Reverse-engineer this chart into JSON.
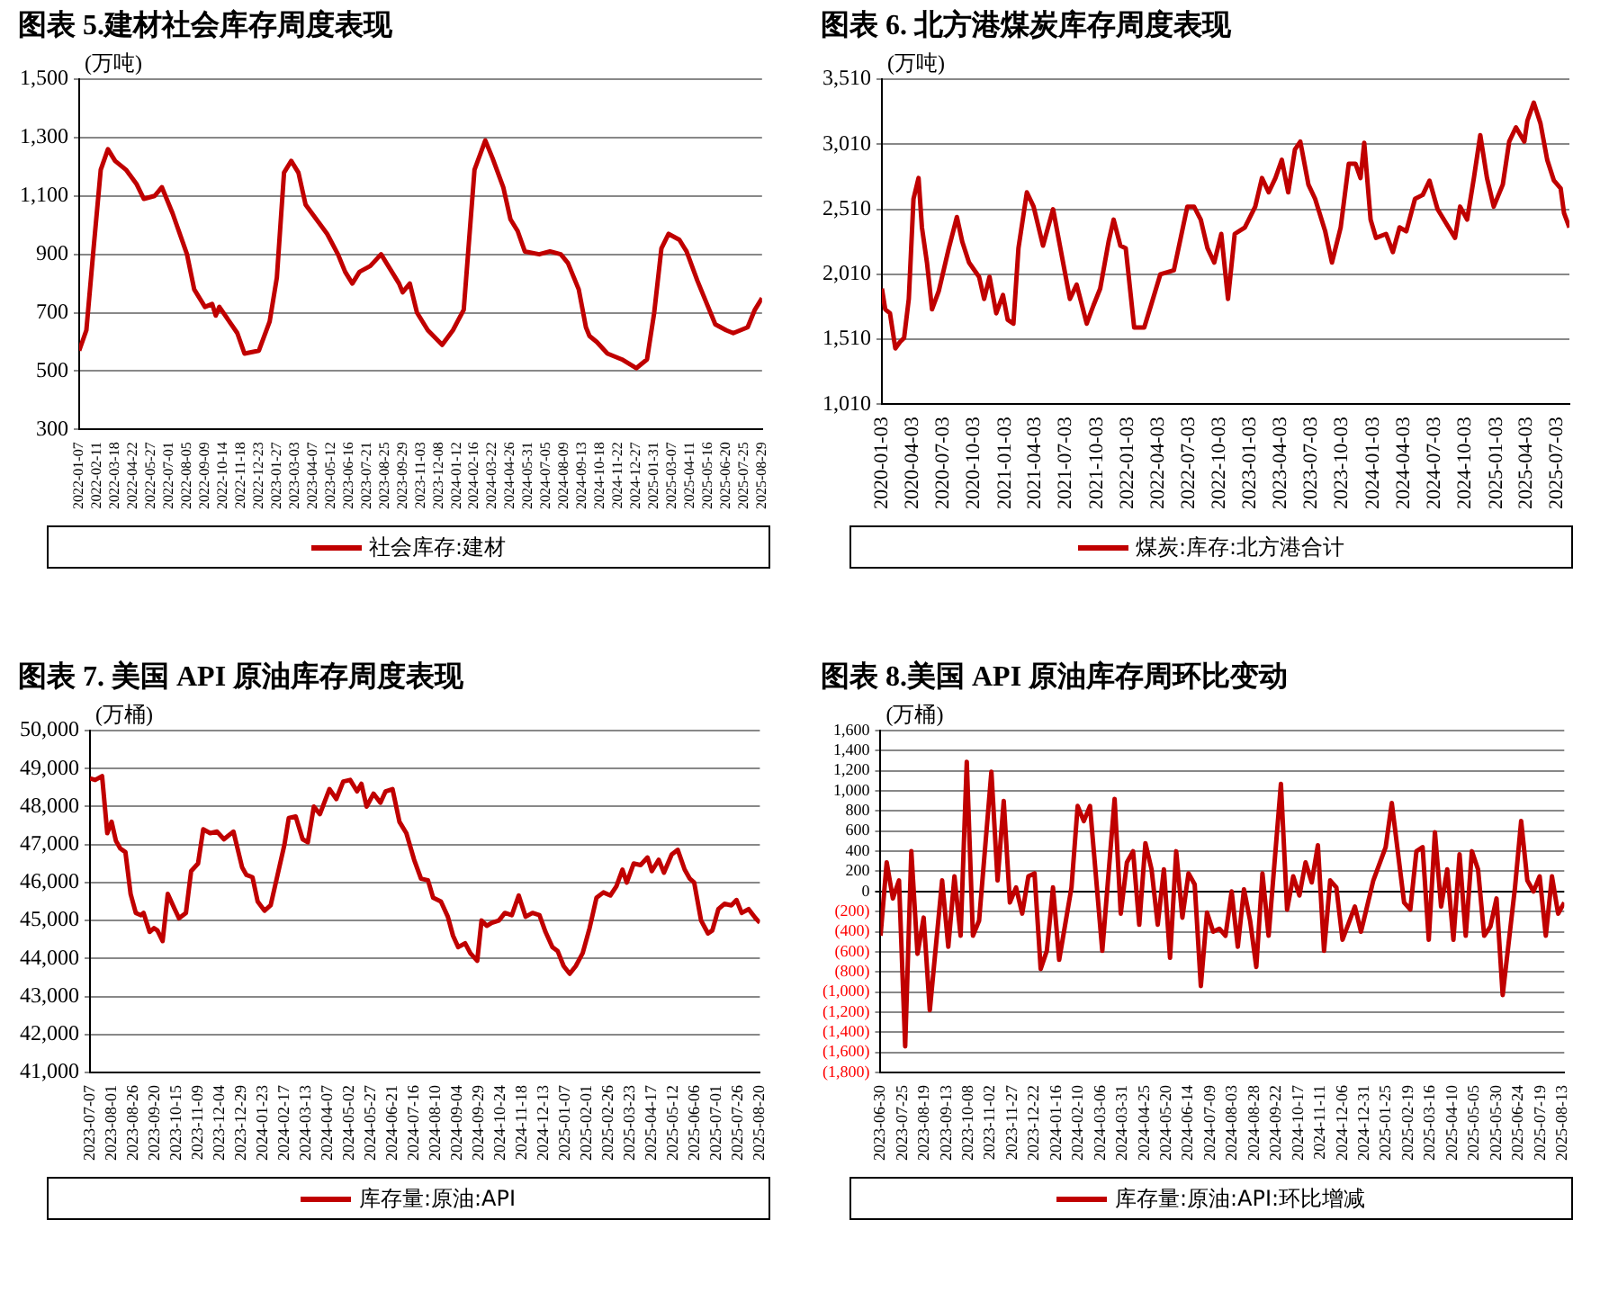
{
  "chart_data": [
    {
      "type": "line",
      "title": "图表 5.建材社会库存周度表现",
      "ylabel": "(万吨)",
      "legend": "bottom",
      "grid": "y",
      "ylim": [
        300,
        1500
      ],
      "yticks": [
        300,
        500,
        700,
        900,
        {
          "value": 1100,
          "label": "1,100"
        },
        {
          "value": 1300,
          "label": "1,300"
        },
        {
          "value": 1500,
          "label": "1,500"
        }
      ],
      "xlim": [
        "2022-01-07",
        "2025-08-29"
      ],
      "xticks": [
        "2022-01-07",
        "2022-02-11",
        "2022-03-18",
        "2022-04-22",
        "2022-05-27",
        "2022-07-01",
        "2022-08-05",
        "2022-09-09",
        "2022-10-14",
        "2022-11-18",
        "2022-12-23",
        "2023-01-27",
        "2023-03-03",
        "2023-04-07",
        "2023-05-12",
        "2023-06-16",
        "2023-07-21",
        "2023-08-25",
        "2023-09-29",
        "2023-11-03",
        "2023-12-08",
        "2024-01-12",
        "2024-02-16",
        "2024-03-22",
        "2024-04-26",
        "2024-05-31",
        "2024-07-05",
        "2024-08-09",
        "2024-09-13",
        "2024-10-18",
        "2024-11-22",
        "2024-12-27",
        "2025-01-31",
        "2025-03-07",
        "2025-04-11",
        "2025-05-16",
        "2025-06-20",
        "2025-07-25",
        "2025-08-29"
      ],
      "series": [
        {
          "name": "社会库存:建材",
          "color": "#c00000",
          "x": [
            "2022-01-07",
            "2022-01-21",
            "2022-02-04",
            "2022-02-18",
            "2022-03-04",
            "2022-03-18",
            "2022-04-08",
            "2022-04-29",
            "2022-05-13",
            "2022-06-03",
            "2022-06-17",
            "2022-07-08",
            "2022-08-05",
            "2022-08-19",
            "2022-09-09",
            "2022-09-23",
            "2022-09-30",
            "2022-10-07",
            "2022-11-11",
            "2022-11-25",
            "2022-12-23",
            "2023-01-13",
            "2023-01-27",
            "2023-02-10",
            "2023-02-24",
            "2023-03-10",
            "2023-03-24",
            "2023-04-14",
            "2023-05-05",
            "2023-05-26",
            "2023-06-09",
            "2023-06-23",
            "2023-07-07",
            "2023-07-28",
            "2023-08-18",
            "2023-09-01",
            "2023-09-22",
            "2023-09-29",
            "2023-10-13",
            "2023-10-27",
            "2023-11-17",
            "2023-12-15",
            "2024-01-05",
            "2024-01-26",
            "2024-02-02",
            "2024-02-16",
            "2024-03-08",
            "2024-03-22",
            "2024-04-12",
            "2024-04-26",
            "2024-05-10",
            "2024-05-24",
            "2024-06-21",
            "2024-07-12",
            "2024-08-02",
            "2024-08-16",
            "2024-09-06",
            "2024-09-20",
            "2024-09-27",
            "2024-10-11",
            "2024-11-01",
            "2024-11-29",
            "2024-12-27",
            "2025-01-03",
            "2025-01-17",
            "2025-01-31",
            "2025-02-14",
            "2025-02-28",
            "2025-03-21",
            "2025-04-04",
            "2025-04-25",
            "2025-05-09",
            "2025-05-30",
            "2025-06-20",
            "2025-07-04",
            "2025-08-01",
            "2025-08-15",
            "2025-08-29"
          ],
          "values": [
            570,
            640,
            920,
            1190,
            1260,
            1220,
            1190,
            1140,
            1090,
            1100,
            1130,
            1040,
            900,
            780,
            720,
            730,
            690,
            720,
            630,
            560,
            570,
            670,
            820,
            1180,
            1220,
            1180,
            1070,
            1020,
            970,
            900,
            840,
            800,
            840,
            860,
            900,
            860,
            800,
            770,
            800,
            700,
            640,
            590,
            640,
            710,
            870,
            1190,
            1290,
            1230,
            1130,
            1020,
            980,
            910,
            900,
            910,
            900,
            870,
            780,
            650,
            620,
            600,
            560,
            540,
            510,
            520,
            540,
            700,
            920,
            970,
            950,
            910,
            810,
            750,
            660,
            640,
            630,
            650,
            710,
            750
          ]
        }
      ]
    },
    {
      "type": "line",
      "title": "图表 6. 北方港煤炭库存周度表现",
      "ylabel": "(万吨)",
      "legend": "bottom",
      "grid": "y",
      "ylim": [
        1010,
        3510
      ],
      "yticks": [
        {
          "value": 1010,
          "label": "1,010"
        },
        {
          "value": 1510,
          "label": "1,510"
        },
        {
          "value": 2010,
          "label": "2,010"
        },
        {
          "value": 2510,
          "label": "2,510"
        },
        {
          "value": 3010,
          "label": "3,010"
        },
        {
          "value": 3510,
          "label": "3,510"
        }
      ],
      "xlim": [
        "2020-01-03",
        "2025-08-08"
      ],
      "xticks": [
        "2020-01-03",
        "2020-04-03",
        "2020-07-03",
        "2020-10-03",
        "2021-01-03",
        "2021-04-03",
        "2021-07-03",
        "2021-10-03",
        "2022-01-03",
        "2022-04-03",
        "2022-07-03",
        "2022-10-03",
        "2023-01-03",
        "2023-04-03",
        "2023-07-03",
        "2023-10-03",
        "2024-01-03",
        "2024-04-03",
        "2024-07-03",
        "2024-10-03",
        "2025-01-03",
        "2025-04-03",
        "2025-07-03"
      ],
      "series": [
        {
          "name": "煤炭:库存:北方港合计",
          "color": "#c00000",
          "x": [
            "2020-01-03",
            "2020-01-13",
            "2020-01-27",
            "2020-02-12",
            "2020-02-26",
            "2020-03-09",
            "2020-03-23",
            "2020-04-06",
            "2020-04-21",
            "2020-05-01",
            "2020-05-16",
            "2020-05-31",
            "2020-06-20",
            "2020-07-20",
            "2020-08-13",
            "2020-08-29",
            "2020-09-18",
            "2020-10-18",
            "2020-11-02",
            "2020-11-18",
            "2020-12-08",
            "2020-12-28",
            "2021-01-11",
            "2021-01-28",
            "2021-02-12",
            "2021-03-09",
            "2021-03-29",
            "2021-04-26",
            "2021-05-26",
            "2021-06-21",
            "2021-07-15",
            "2021-08-04",
            "2021-09-03",
            "2021-09-23",
            "2021-10-13",
            "2021-11-07",
            "2021-11-22",
            "2021-12-12",
            "2021-12-28",
            "2022-01-22",
            "2022-02-21",
            "2022-03-13",
            "2022-04-10",
            "2022-05-20",
            "2022-06-29",
            "2022-07-19",
            "2022-08-08",
            "2022-08-28",
            "2022-09-17",
            "2022-10-08",
            "2022-10-28",
            "2022-11-17",
            "2022-12-17",
            "2023-01-17",
            "2023-02-06",
            "2023-02-26",
            "2023-03-18",
            "2023-04-06",
            "2023-04-25",
            "2023-05-15",
            "2023-05-31",
            "2023-06-24",
            "2023-07-14",
            "2023-08-13",
            "2023-09-02",
            "2023-09-28",
            "2023-10-22",
            "2023-11-11",
            "2023-11-26",
            "2023-12-07",
            "2023-12-26",
            "2024-01-11",
            "2024-02-10",
            "2024-03-01",
            "2024-03-21",
            "2024-04-10",
            "2024-05-06",
            "2024-05-29",
            "2024-06-18",
            "2024-07-12",
            "2024-08-07",
            "2024-09-02",
            "2024-09-17",
            "2024-10-08",
            "2024-10-28",
            "2024-11-16",
            "2024-12-06",
            "2024-12-26",
            "2025-01-22",
            "2025-02-10",
            "2025-03-02",
            "2025-03-27",
            "2025-04-05",
            "2025-04-24",
            "2025-05-14",
            "2025-06-03",
            "2025-06-23",
            "2025-07-13",
            "2025-07-23",
            "2025-08-08"
          ],
          "values": [
            1900,
            1740,
            1710,
            1440,
            1490,
            1520,
            1820,
            2590,
            2750,
            2370,
            2100,
            1740,
            1880,
            2210,
            2450,
            2260,
            2100,
            1990,
            1820,
            1990,
            1710,
            1850,
            1660,
            1630,
            2210,
            2640,
            2530,
            2230,
            2510,
            2150,
            1820,
            1930,
            1630,
            1770,
            1900,
            2260,
            2430,
            2230,
            2210,
            1600,
            1600,
            1770,
            2010,
            2040,
            2530,
            2530,
            2430,
            2210,
            2100,
            2320,
            1820,
            2320,
            2370,
            2530,
            2750,
            2640,
            2750,
            2890,
            2640,
            2970,
            3030,
            2700,
            2590,
            2340,
            2100,
            2370,
            2860,
            2860,
            2750,
            3020,
            2430,
            2290,
            2320,
            2180,
            2370,
            2340,
            2590,
            2620,
            2730,
            2510,
            2400,
            2290,
            2530,
            2430,
            2750,
            3080,
            2750,
            2530,
            2700,
            3030,
            3140,
            3030,
            3190,
            3330,
            3170,
            2890,
            2730,
            2670,
            2480,
            2370
          ]
        }
      ]
    },
    {
      "type": "line",
      "title": "图表 7. 美国 API 原油库存周度表现",
      "ylabel": "(万桶)",
      "legend": "bottom",
      "grid": "y",
      "ylim": [
        41000,
        50000
      ],
      "yticks": [
        {
          "value": 41000,
          "label": "41,000"
        },
        {
          "value": 42000,
          "label": "42,000"
        },
        {
          "value": 43000,
          "label": "43,000"
        },
        {
          "value": 44000,
          "label": "44,000"
        },
        {
          "value": 45000,
          "label": "45,000"
        },
        {
          "value": 46000,
          "label": "46,000"
        },
        {
          "value": 47000,
          "label": "47,000"
        },
        {
          "value": 48000,
          "label": "48,000"
        },
        {
          "value": 49000,
          "label": "49,000"
        },
        {
          "value": 50000,
          "label": "50,000"
        }
      ],
      "xlim": [
        "2023-07-07",
        "2025-08-20"
      ],
      "xticks": [
        "2023-07-07",
        "2023-08-01",
        "2023-08-26",
        "2023-09-20",
        "2023-10-15",
        "2023-11-09",
        "2023-12-04",
        "2023-12-29",
        "2024-01-23",
        "2024-02-17",
        "2024-03-13",
        "2024-04-07",
        "2024-05-02",
        "2024-05-27",
        "2024-06-21",
        "2024-07-16",
        "2024-08-10",
        "2024-09-04",
        "2024-09-29",
        "2024-10-24",
        "2024-11-18",
        "2024-12-13",
        "2025-01-07",
        "2025-02-01",
        "2025-02-26",
        "2025-03-23",
        "2025-04-17",
        "2025-05-12",
        "2025-06-06",
        "2025-07-01",
        "2025-07-26",
        "2025-08-20"
      ],
      "series": [
        {
          "name": "库存量:原油:API",
          "color": "#c00000",
          "x": [
            "2023-07-07",
            "2023-07-13",
            "2023-07-21",
            "2023-07-27",
            "2023-08-01",
            "2023-08-06",
            "2023-08-11",
            "2023-08-17",
            "2023-08-23",
            "2023-08-29",
            "2023-09-04",
            "2023-09-07",
            "2023-09-14",
            "2023-09-19",
            "2023-09-23",
            "2023-09-29",
            "2023-10-05",
            "2023-10-13",
            "2023-10-18",
            "2023-10-26",
            "2023-11-01",
            "2023-11-09",
            "2023-11-15",
            "2023-11-23",
            "2023-12-01",
            "2023-12-09",
            "2023-12-20",
            "2023-12-30",
            "2024-01-04",
            "2024-01-11",
            "2024-01-17",
            "2024-01-25",
            "2024-02-01",
            "2024-02-09",
            "2024-02-17",
            "2024-02-22",
            "2024-03-01",
            "2024-03-09",
            "2024-03-15",
            "2024-03-22",
            "2024-03-29",
            "2024-04-09",
            "2024-04-17",
            "2024-04-25",
            "2024-05-03",
            "2024-05-11",
            "2024-05-16",
            "2024-05-22",
            "2024-05-30",
            "2024-06-07",
            "2024-06-13",
            "2024-06-21",
            "2024-06-29",
            "2024-07-07",
            "2024-07-16",
            "2024-07-24",
            "2024-08-01",
            "2024-08-07",
            "2024-08-16",
            "2024-08-24",
            "2024-08-30",
            "2024-09-05",
            "2024-09-13",
            "2024-09-19",
            "2024-09-27",
            "2024-10-02",
            "2024-10-08",
            "2024-10-14",
            "2024-10-22",
            "2024-10-29",
            "2024-11-06",
            "2024-11-14",
            "2024-11-22",
            "2024-11-30",
            "2024-12-08",
            "2024-12-15",
            "2024-12-23",
            "2024-12-29",
            "2025-01-05",
            "2025-01-12",
            "2025-01-19",
            "2025-01-27",
            "2025-02-04",
            "2025-02-12",
            "2025-02-20",
            "2025-02-28",
            "2025-03-07",
            "2025-03-14",
            "2025-03-19",
            "2025-03-27",
            "2025-04-04",
            "2025-04-12",
            "2025-04-17",
            "2025-04-25",
            "2025-05-01",
            "2025-05-10",
            "2025-05-17",
            "2025-05-25",
            "2025-05-31",
            "2025-06-05",
            "2025-06-13",
            "2025-06-21",
            "2025-06-26",
            "2025-07-03",
            "2025-07-10",
            "2025-07-18",
            "2025-07-24",
            "2025-07-30",
            "2025-08-07",
            "2025-08-15",
            "2025-08-20"
          ],
          "values": [
            48740,
            48700,
            48800,
            47300,
            47600,
            47100,
            46900,
            46800,
            45700,
            45200,
            45140,
            45200,
            44700,
            44800,
            44740,
            44460,
            45700,
            45300,
            45060,
            45200,
            46300,
            46500,
            47400,
            47300,
            47340,
            47140,
            47340,
            46400,
            46200,
            46140,
            45500,
            45260,
            45400,
            46200,
            47000,
            47700,
            47740,
            47140,
            47060,
            48000,
            47800,
            48460,
            48200,
            48660,
            48700,
            48400,
            48600,
            48000,
            48340,
            48100,
            48400,
            48460,
            47600,
            47300,
            46600,
            46100,
            46060,
            45600,
            45500,
            45100,
            44600,
            44300,
            44400,
            44140,
            43940,
            45000,
            44860,
            44940,
            45000,
            45200,
            45140,
            45660,
            45100,
            45200,
            45140,
            44700,
            44300,
            44200,
            43800,
            43600,
            43800,
            44140,
            44800,
            45600,
            45740,
            45660,
            45900,
            46340,
            46000,
            46500,
            46460,
            46660,
            46300,
            46600,
            46260,
            46740,
            46860,
            46340,
            46100,
            46000,
            45000,
            44660,
            44740,
            45300,
            45440,
            45400,
            45540,
            45200,
            45300,
            45060,
            44940
          ]
        }
      ]
    },
    {
      "type": "line",
      "title": "图表 8.美国 API 原油库存周环比变动",
      "ylabel": "(万桶)",
      "legend": "bottom",
      "grid": "y",
      "ylim": [
        -1800,
        1600
      ],
      "yticks": [
        {
          "value": -1800,
          "label": "(1,800)"
        },
        {
          "value": -1600,
          "label": "(1,600)"
        },
        {
          "value": -1400,
          "label": "(1,400)"
        },
        {
          "value": -1200,
          "label": "(1,200)"
        },
        {
          "value": -1000,
          "label": "(1,000)"
        },
        {
          "value": -800,
          "label": "(800)"
        },
        {
          "value": -600,
          "label": "(600)"
        },
        {
          "value": -400,
          "label": "(400)"
        },
        {
          "value": -200,
          "label": "(200)"
        },
        0,
        200,
        400,
        600,
        800,
        {
          "value": 1000,
          "label": "1,000"
        },
        {
          "value": 1200,
          "label": "1,200"
        },
        {
          "value": 1400,
          "label": "1,400"
        },
        {
          "value": 1600,
          "label": "1,600"
        }
      ],
      "xlim": [
        "2023-06-30",
        "2025-08-15"
      ],
      "xticks": [
        "2023-06-30",
        "2023-07-25",
        "2023-08-19",
        "2023-09-13",
        "2023-10-08",
        "2023-11-02",
        "2023-11-27",
        "2023-12-22",
        "2024-01-16",
        "2024-02-10",
        "2024-03-06",
        "2024-03-31",
        "2024-04-25",
        "2024-05-20",
        "2024-06-14",
        "2024-07-09",
        "2024-08-03",
        "2024-08-28",
        "2024-09-22",
        "2024-10-17",
        "2024-11-11",
        "2024-12-06",
        "2024-12-31",
        "2025-01-25",
        "2025-02-19",
        "2025-03-16",
        "2025-04-10",
        "2025-05-05",
        "2025-05-30",
        "2025-06-24",
        "2025-07-19",
        "2025-08-13"
      ],
      "series": [
        {
          "name": "库存量:原油:API:环比增减",
          "color": "#c00000",
          "x": [
            "2023-06-30",
            "2023-07-07",
            "2023-07-14",
            "2023-07-21",
            "2023-07-28",
            "2023-08-04",
            "2023-08-11",
            "2023-08-18",
            "2023-08-25",
            "2023-09-08",
            "2023-09-15",
            "2023-09-22",
            "2023-09-29",
            "2023-10-06",
            "2023-10-13",
            "2023-10-20",
            "2023-11-03",
            "2023-11-10",
            "2023-11-17",
            "2023-11-24",
            "2023-12-01",
            "2023-12-08",
            "2023-12-15",
            "2023-12-22",
            "2023-12-29",
            "2024-01-05",
            "2024-01-12",
            "2024-01-19",
            "2024-02-02",
            "2024-02-09",
            "2024-02-16",
            "2024-02-23",
            "2024-03-08",
            "2024-03-22",
            "2024-03-29",
            "2024-04-05",
            "2024-04-12",
            "2024-04-19",
            "2024-04-26",
            "2024-05-03",
            "2024-05-10",
            "2024-05-17",
            "2024-05-24",
            "2024-05-31",
            "2024-06-07",
            "2024-06-14",
            "2024-06-21",
            "2024-06-28",
            "2024-07-05",
            "2024-07-12",
            "2024-07-19",
            "2024-07-26",
            "2024-08-02",
            "2024-08-09",
            "2024-08-16",
            "2024-08-23",
            "2024-08-30",
            "2024-09-06",
            "2024-09-13",
            "2024-09-27",
            "2024-10-04",
            "2024-10-11",
            "2024-10-18",
            "2024-10-25",
            "2024-11-01",
            "2024-11-08",
            "2024-11-15",
            "2024-11-22",
            "2024-11-29",
            "2024-12-06",
            "2024-12-20",
            "2024-12-27",
            "2025-01-10",
            "2025-01-24",
            "2025-01-31",
            "2025-02-14",
            "2025-02-21",
            "2025-02-28",
            "2025-03-07",
            "2025-03-14",
            "2025-03-21",
            "2025-03-28",
            "2025-04-04",
            "2025-04-11",
            "2025-04-18",
            "2025-04-25",
            "2025-05-02",
            "2025-05-09",
            "2025-05-16",
            "2025-05-23",
            "2025-05-30",
            "2025-06-06",
            "2025-06-20",
            "2025-06-27",
            "2025-07-04",
            "2025-07-11",
            "2025-07-18",
            "2025-07-25",
            "2025-08-01",
            "2025-08-08",
            "2025-08-15"
          ],
          "values": [
            -440,
            290,
            -70,
            110,
            -1540,
            400,
            -620,
            -260,
            -1180,
            110,
            -550,
            150,
            -440,
            1290,
            -440,
            -290,
            1190,
            110,
            900,
            -110,
            40,
            -220,
            150,
            180,
            -770,
            -590,
            40,
            -680,
            40,
            850,
            700,
            850,
            -590,
            920,
            -220,
            290,
            400,
            -330,
            480,
            220,
            -330,
            220,
            -660,
            400,
            -260,
            180,
            70,
            -940,
            -210,
            -400,
            -370,
            -440,
            0,
            -550,
            20,
            -290,
            -750,
            180,
            -440,
            1070,
            -180,
            150,
            -40,
            290,
            90,
            460,
            -590,
            110,
            40,
            -480,
            -150,
            -400,
            110,
            440,
            880,
            -110,
            -180,
            400,
            440,
            -480,
            590,
            -150,
            220,
            -480,
            370,
            -440,
            400,
            220,
            -440,
            -350,
            -70,
            -1030,
            40,
            700,
            110,
            0,
            150,
            -440,
            150,
            -220,
            -110
          ]
        }
      ]
    }
  ]
}
